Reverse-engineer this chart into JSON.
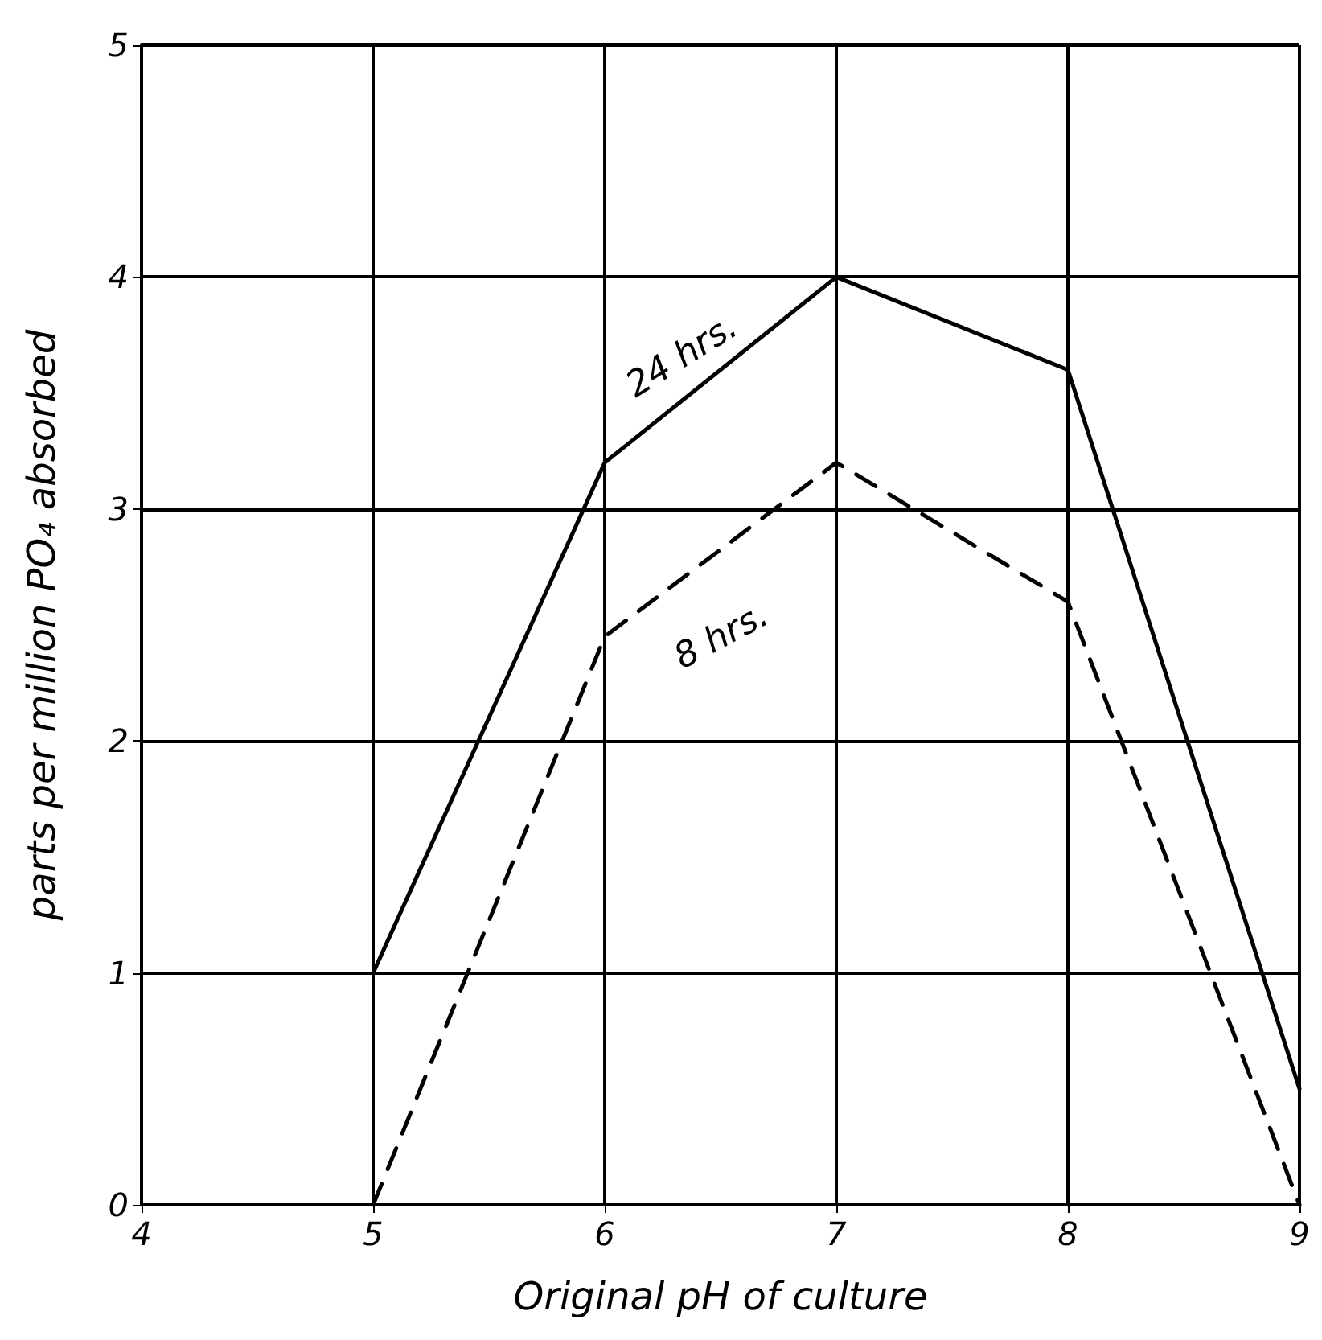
{
  "chart_data": {
    "type": "line",
    "xlabel": "Original pH of culture",
    "ylabel": "parts per million PO₄ absorbed",
    "x": [
      5,
      6,
      7,
      8,
      9
    ],
    "series": [
      {
        "name": "24 hrs.",
        "color": "#000000",
        "line_style": "solid",
        "values": [
          1.0,
          3.2,
          4.0,
          3.6,
          0.5
        ]
      },
      {
        "name": "8 hrs.",
        "color": "#000000",
        "line_style": "dashed",
        "values": [
          0,
          2.45,
          3.2,
          2.6,
          0
        ]
      }
    ],
    "xlim": [
      4,
      9
    ],
    "xticks": [
      4,
      5,
      6,
      7,
      8,
      9
    ],
    "ylim": [
      0,
      5
    ],
    "yticks": [
      0,
      1,
      2,
      3,
      4,
      5
    ],
    "grid": true,
    "legend": false,
    "marker": "none"
  }
}
